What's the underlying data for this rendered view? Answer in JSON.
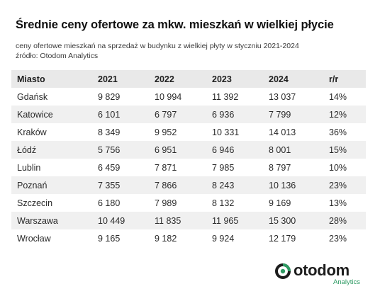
{
  "header": {
    "title": "Średnie ceny ofertowe za mkw. mieszkań w wielkiej płycie",
    "subtitle_line1": "ceny ofertowe mieszkań na sprzedaż w budynku z wielkiej płyty w styczniu  2021-2024",
    "subtitle_line2": "źródło: Otodom Analytics"
  },
  "chart_data": {
    "type": "table",
    "title": "Średnie ceny ofertowe za mkw. mieszkań w wielkiej płycie",
    "columns": [
      "Miasto",
      "2021",
      "2022",
      "2023",
      "2024",
      "r/r"
    ],
    "rows": [
      [
        "Gdańsk",
        "9 829",
        "10 994",
        "11 392",
        "13 037",
        "14%"
      ],
      [
        "Katowice",
        "6 101",
        "6 797",
        "6 936",
        "7 799",
        "12%"
      ],
      [
        "Kraków",
        "8 349",
        "9 952",
        "10 331",
        "14 013",
        "36%"
      ],
      [
        "Łódź",
        "5 756",
        "6 951",
        "6 946",
        "8 001",
        "15%"
      ],
      [
        "Lublin",
        "6 459",
        "7 871",
        "7 985",
        "8 797",
        "10%"
      ],
      [
        "Poznań",
        "7 355",
        "7 866",
        "8 243",
        "10 136",
        "23%"
      ],
      [
        "Szczecin",
        "6 180",
        "7 989",
        "8 132",
        "9 169",
        "13%"
      ],
      [
        "Warszawa",
        "10 449",
        "11 835",
        "11 965",
        "15 300",
        "28%"
      ],
      [
        "Wrocław",
        "9 165",
        "9 182",
        "9 924",
        "12 179",
        "23%"
      ]
    ]
  },
  "logo": {
    "word": "otodom",
    "sub": "Analytics",
    "icon": "otodom-logo-icon",
    "accent_color": "#2e9b63",
    "dark_color": "#1d1d1d"
  },
  "colors": {
    "header_bg": "#e9e9e9",
    "stripe_bg": "#f0f0f0"
  }
}
